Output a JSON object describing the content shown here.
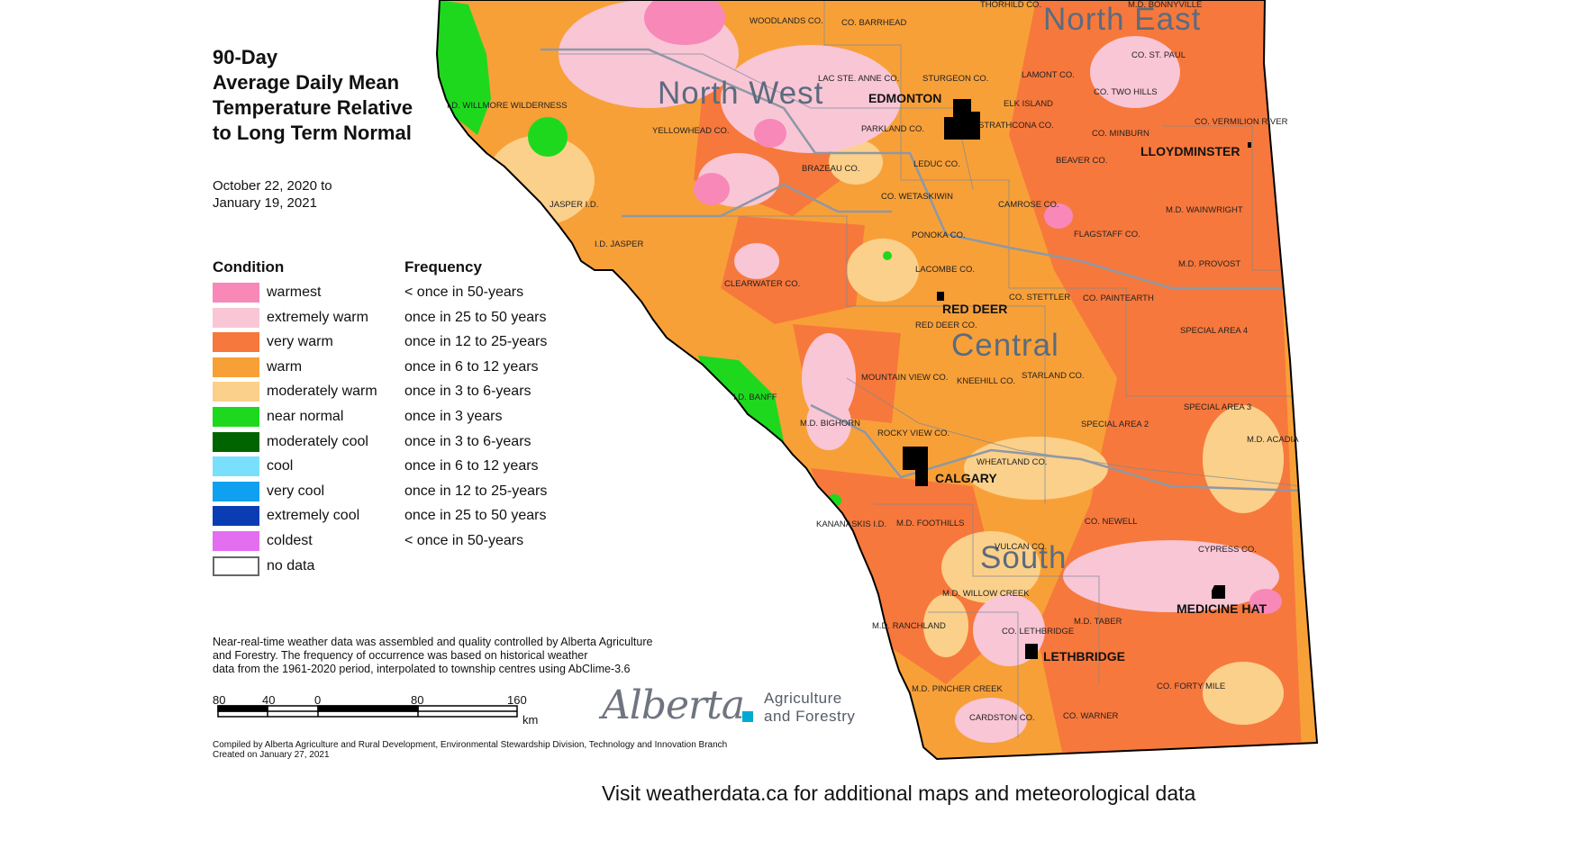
{
  "title": [
    "90-Day",
    "Average Daily Mean",
    "Temperature Relative",
    "to Long Term Normal"
  ],
  "date_range": [
    "October 22, 2020 to",
    "January 19, 2021"
  ],
  "legend": {
    "condition_header": "Condition",
    "frequency_header": "Frequency",
    "items": [
      {
        "label": "warmest",
        "frequency": "< once in 50-years",
        "color": "#f788b8"
      },
      {
        "label": "extremely warm",
        "frequency": "once in 25 to 50 years",
        "color": "#f9c6d6"
      },
      {
        "label": "very warm",
        "frequency": "once in 12 to 25-years",
        "color": "#f7783c"
      },
      {
        "label": "warm",
        "frequency": "once in 6 to 12 years",
        "color": "#f8a038"
      },
      {
        "label": "moderately warm",
        "frequency": "once in 3 to 6-years",
        "color": "#fbd08a"
      },
      {
        "label": "near normal",
        "frequency": "once in 3 years",
        "color": "#1ed81e"
      },
      {
        "label": "moderately cool",
        "frequency": "once in 3 to 6-years",
        "color": "#006400"
      },
      {
        "label": "cool",
        "frequency": "once in 6 to 12 years",
        "color": "#78e0fc"
      },
      {
        "label": "very cool",
        "frequency": "once in 12 to 25-years",
        "color": "#10a0f0"
      },
      {
        "label": "extremely cool",
        "frequency": "once in 25 to 50 years",
        "color": "#0a3cb4"
      },
      {
        "label": "coldest",
        "frequency": "< once in 50-years",
        "color": "#e36ef0"
      },
      {
        "label": "no data",
        "frequency": "",
        "color": "#ffffff"
      }
    ]
  },
  "note": [
    "Near-real-time weather data was assembled and quality controlled by Alberta Agriculture",
    "and Forestry. The frequency of occurrence was based on historical weather",
    "data from the 1961-2020 period, interpolated to township centres using AbClime-3.6"
  ],
  "scale": {
    "labels": [
      "80",
      "40",
      "0",
      "80",
      "160"
    ],
    "unit": "km"
  },
  "compiled": [
    "Compiled by Alberta Agriculture and Rural Development, Environmental Stewardship Division, Technology and Innovation Branch",
    "Created on January 27, 2021"
  ],
  "logo": {
    "wordmark": "Alberta",
    "dept_line1": "Agriculture",
    "dept_line2": "and Forestry"
  },
  "footer": "Visit weatherdata.ca for additional maps and meteorological data",
  "regions": [
    "North East",
    "North West",
    "Central",
    "South"
  ],
  "cities": [
    "EDMONTON",
    "LLOYDMINSTER",
    "RED DEER",
    "CALGARY",
    "MEDICINE HAT",
    "LETHBRIDGE"
  ],
  "counties": [
    "WOODLANDS CO.",
    "CO. BARRHEAD",
    "THORHILD CO.",
    "M.D. BONNYVILLE",
    "CO. ST. PAUL",
    "LAC STE. ANNE CO.",
    "STURGEON CO.",
    "LAMONT CO.",
    "CO. TWO HILLS",
    "I.D. WILLMORE WILDERNESS",
    "YELLOWHEAD CO.",
    "PARKLAND CO.",
    "ELK ISLAND",
    "STRATHCONA CO.",
    "CO. MINBURN",
    "CO. VERMILION RIVER",
    "BRAZEAU CO.",
    "LEDUC CO.",
    "BEAVER CO.",
    "CO. WETASKIWIN",
    "CAMROSE CO.",
    "M.D. WAINWRIGHT",
    "JASPER I.D.",
    "I.D. JASPER",
    "PONOKA CO.",
    "FLAGSTAFF CO.",
    "M.D. PROVOST",
    "LACOMBE CO.",
    "CLEARWATER CO.",
    "CO. STETTLER",
    "CO. PAINTEARTH",
    "RED DEER CO.",
    "SPECIAL AREA 4",
    "MOUNTAIN VIEW CO.",
    "KNEEHILL CO.",
    "STARLAND CO.",
    "I.D. BANFF",
    "SPECIAL AREA 3",
    "M.D. BIGHORN",
    "ROCKY VIEW CO.",
    "SPECIAL AREA 2",
    "M.D. ACADIA",
    "WHEATLAND CO.",
    "KANANASKIS I.D.",
    "M.D. FOOTHILLS",
    "CO. NEWELL",
    "VULCAN CO.",
    "CYPRESS CO.",
    "M.D. WILLOW CREEK",
    "M.D. RANCHLAND",
    "CO. LETHBRIDGE",
    "M.D. TABER",
    "M.D. PINCHER CREEK",
    "CO. FORTY MILE",
    "CARDSTON CO.",
    "CO. WARNER"
  ]
}
